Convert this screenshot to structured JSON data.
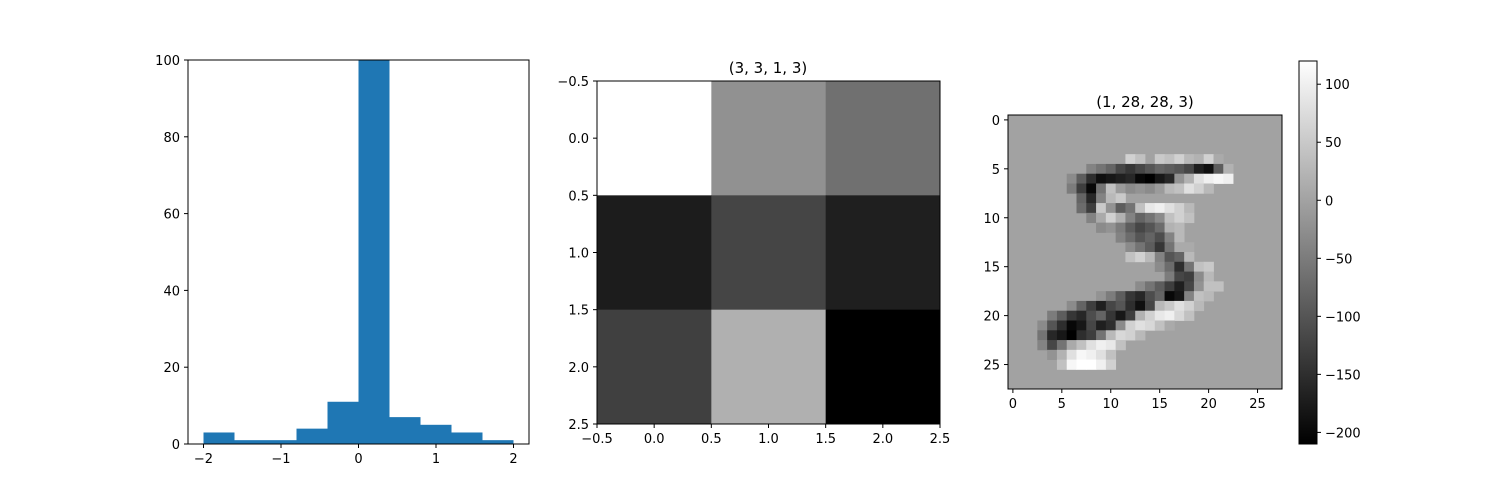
{
  "chart_data": [
    {
      "type": "bar",
      "subtype": "histogram",
      "title": "",
      "xlabel": "",
      "ylabel": "",
      "xlim": [
        -2.2,
        2.2
      ],
      "ylim": [
        0,
        100
      ],
      "bin_edges": [
        -2.0,
        -1.6,
        -1.2,
        -0.8,
        -0.4,
        0.0,
        0.4,
        0.8,
        1.2,
        1.6,
        2.0
      ],
      "values": [
        3,
        1,
        1,
        4,
        11,
        100,
        7,
        5,
        3,
        1
      ],
      "xticks": [
        -2,
        -1,
        0,
        1,
        2
      ],
      "xtick_labels": [
        "−2",
        "−1",
        "0",
        "1",
        "2"
      ],
      "yticks": [
        0,
        20,
        40,
        60,
        80,
        100
      ],
      "ytick_labels": [
        "0",
        "20",
        "40",
        "60",
        "80",
        "100"
      ],
      "bar_color": "#1f77b4",
      "grid": false
    },
    {
      "type": "heatmap",
      "title": "(3, 3, 1, 3)",
      "xlim": [
        -0.5,
        2.5
      ],
      "ylim": [
        2.5,
        -0.5
      ],
      "colormap": "gray",
      "values": [
        [
          1.0,
          0.57,
          0.44
        ],
        [
          0.11,
          0.27,
          0.12
        ],
        [
          0.25,
          0.69,
          0.0
        ]
      ],
      "xticks": [
        -0.5,
        0.0,
        0.5,
        1.0,
        1.5,
        2.0,
        2.5
      ],
      "xtick_labels": [
        "−0.5",
        "0.0",
        "0.5",
        "1.0",
        "1.5",
        "2.0",
        "2.5"
      ],
      "yticks": [
        -0.5,
        0.0,
        0.5,
        1.0,
        1.5,
        2.0,
        2.5
      ],
      "ytick_labels": [
        "−0.5",
        "0.0",
        "0.5",
        "1.0",
        "1.5",
        "2.0",
        "2.5"
      ],
      "grid": false
    },
    {
      "type": "heatmap",
      "title": "(1, 28, 28, 3)",
      "colormap": "gray",
      "vmin": -210,
      "vmax": 120,
      "background_value": 0,
      "rows": 28,
      "cols": 28,
      "cells": [
        [
          4,
          12,
          60
        ],
        [
          4,
          13,
          40
        ],
        [
          4,
          15,
          50
        ],
        [
          4,
          16,
          40
        ],
        [
          4,
          17,
          60
        ],
        [
          4,
          18,
          30
        ],
        [
          4,
          19,
          20
        ],
        [
          4,
          20,
          60
        ],
        [
          4,
          21,
          10
        ],
        [
          5,
          8,
          -40
        ],
        [
          5,
          9,
          -60
        ],
        [
          5,
          10,
          -80
        ],
        [
          5,
          11,
          -120
        ],
        [
          5,
          12,
          -140
        ],
        [
          5,
          13,
          -120
        ],
        [
          5,
          14,
          -100
        ],
        [
          5,
          15,
          -80
        ],
        [
          5,
          16,
          -90
        ],
        [
          5,
          17,
          -100
        ],
        [
          5,
          18,
          -120
        ],
        [
          5,
          19,
          -170
        ],
        [
          5,
          20,
          -190
        ],
        [
          5,
          21,
          -90
        ],
        [
          5,
          22,
          20
        ],
        [
          6,
          6,
          -30
        ],
        [
          6,
          7,
          -90
        ],
        [
          6,
          8,
          -150
        ],
        [
          6,
          9,
          -190
        ],
        [
          6,
          10,
          -180
        ],
        [
          6,
          11,
          -170
        ],
        [
          6,
          12,
          -160
        ],
        [
          6,
          13,
          -200
        ],
        [
          6,
          14,
          -210
        ],
        [
          6,
          15,
          -180
        ],
        [
          6,
          16,
          -160
        ],
        [
          6,
          17,
          -20
        ],
        [
          6,
          18,
          20
        ],
        [
          6,
          19,
          80
        ],
        [
          6,
          20,
          100
        ],
        [
          6,
          21,
          110
        ],
        [
          6,
          22,
          100
        ],
        [
          7,
          6,
          -50
        ],
        [
          7,
          7,
          -130
        ],
        [
          7,
          8,
          -200
        ],
        [
          7,
          9,
          -60
        ],
        [
          7,
          10,
          40
        ],
        [
          7,
          11,
          -10
        ],
        [
          7,
          12,
          -30
        ],
        [
          7,
          13,
          -20
        ],
        [
          7,
          14,
          -30
        ],
        [
          7,
          15,
          -10
        ],
        [
          7,
          16,
          30
        ],
        [
          7,
          17,
          40
        ],
        [
          7,
          18,
          80
        ],
        [
          7,
          19,
          60
        ],
        [
          7,
          20,
          30
        ],
        [
          8,
          7,
          -80
        ],
        [
          8,
          8,
          -160
        ],
        [
          8,
          9,
          -40
        ],
        [
          8,
          10,
          30
        ],
        [
          8,
          11,
          50
        ],
        [
          9,
          7,
          -70
        ],
        [
          9,
          8,
          -130
        ],
        [
          9,
          9,
          50
        ],
        [
          9,
          10,
          -20
        ],
        [
          9,
          11,
          -90
        ],
        [
          9,
          12,
          -60
        ],
        [
          9,
          13,
          40
        ],
        [
          9,
          14,
          90
        ],
        [
          9,
          15,
          100
        ],
        [
          9,
          16,
          80
        ],
        [
          9,
          17,
          60
        ],
        [
          9,
          18,
          30
        ],
        [
          10,
          8,
          -40
        ],
        [
          10,
          9,
          10
        ],
        [
          10,
          10,
          60
        ],
        [
          10,
          11,
          20
        ],
        [
          10,
          12,
          -40
        ],
        [
          10,
          13,
          -80
        ],
        [
          10,
          14,
          -60
        ],
        [
          10,
          15,
          -30
        ],
        [
          10,
          16,
          40
        ],
        [
          10,
          17,
          60
        ],
        [
          10,
          18,
          40
        ],
        [
          11,
          9,
          -30
        ],
        [
          11,
          10,
          -20
        ],
        [
          11,
          11,
          -50
        ],
        [
          11,
          12,
          -90
        ],
        [
          11,
          13,
          -120
        ],
        [
          11,
          14,
          -100
        ],
        [
          11,
          15,
          -70
        ],
        [
          11,
          16,
          20
        ],
        [
          11,
          17,
          30
        ],
        [
          12,
          11,
          -40
        ],
        [
          12,
          12,
          -70
        ],
        [
          12,
          13,
          -100
        ],
        [
          12,
          14,
          -80
        ],
        [
          12,
          15,
          -110
        ],
        [
          12,
          16,
          -40
        ],
        [
          12,
          17,
          30
        ],
        [
          13,
          12,
          -30
        ],
        [
          13,
          13,
          -60
        ],
        [
          13,
          14,
          -90
        ],
        [
          13,
          15,
          -140
        ],
        [
          13,
          16,
          -60
        ],
        [
          13,
          17,
          10
        ],
        [
          13,
          18,
          10
        ],
        [
          14,
          12,
          40
        ],
        [
          14,
          13,
          60
        ],
        [
          14,
          14,
          30
        ],
        [
          14,
          15,
          -40
        ],
        [
          14,
          16,
          -100
        ],
        [
          14,
          17,
          -80
        ],
        [
          14,
          18,
          30
        ],
        [
          15,
          15,
          -30
        ],
        [
          15,
          16,
          -70
        ],
        [
          15,
          17,
          -150
        ],
        [
          15,
          18,
          -60
        ],
        [
          15,
          19,
          40
        ],
        [
          15,
          20,
          50
        ],
        [
          16,
          16,
          -50
        ],
        [
          16,
          17,
          -120
        ],
        [
          16,
          18,
          -130
        ],
        [
          16,
          19,
          -30
        ],
        [
          16,
          20,
          30
        ],
        [
          17,
          13,
          -30
        ],
        [
          17,
          14,
          -60
        ],
        [
          17,
          15,
          -90
        ],
        [
          17,
          16,
          -130
        ],
        [
          17,
          17,
          -170
        ],
        [
          17,
          18,
          -120
        ],
        [
          17,
          19,
          -20
        ],
        [
          17,
          20,
          40
        ],
        [
          17,
          21,
          40
        ],
        [
          18,
          9,
          -20
        ],
        [
          18,
          10,
          -50
        ],
        [
          18,
          11,
          -90
        ],
        [
          18,
          12,
          -140
        ],
        [
          18,
          13,
          -160
        ],
        [
          18,
          14,
          -110
        ],
        [
          18,
          15,
          -80
        ],
        [
          18,
          16,
          -200
        ],
        [
          18,
          17,
          -180
        ],
        [
          18,
          18,
          -40
        ],
        [
          18,
          19,
          40
        ],
        [
          18,
          20,
          30
        ],
        [
          19,
          6,
          -30
        ],
        [
          19,
          7,
          -80
        ],
        [
          19,
          8,
          -130
        ],
        [
          19,
          9,
          -170
        ],
        [
          19,
          10,
          -120
        ],
        [
          19,
          11,
          -100
        ],
        [
          19,
          12,
          -150
        ],
        [
          19,
          13,
          -190
        ],
        [
          19,
          14,
          -120
        ],
        [
          19,
          15,
          30
        ],
        [
          19,
          16,
          50
        ],
        [
          19,
          17,
          80
        ],
        [
          19,
          18,
          60
        ],
        [
          19,
          19,
          30
        ],
        [
          20,
          4,
          -50
        ],
        [
          20,
          5,
          -90
        ],
        [
          20,
          6,
          -140
        ],
        [
          20,
          7,
          -160
        ],
        [
          20,
          8,
          -110
        ],
        [
          20,
          9,
          -80
        ],
        [
          20,
          10,
          -140
        ],
        [
          20,
          11,
          -180
        ],
        [
          20,
          12,
          -130
        ],
        [
          20,
          13,
          20
        ],
        [
          20,
          14,
          60
        ],
        [
          20,
          15,
          90
        ],
        [
          20,
          16,
          100
        ],
        [
          20,
          17,
          70
        ],
        [
          20,
          18,
          40
        ],
        [
          21,
          3,
          -30
        ],
        [
          21,
          4,
          -100
        ],
        [
          21,
          5,
          -150
        ],
        [
          21,
          6,
          -200
        ],
        [
          21,
          7,
          -180
        ],
        [
          21,
          8,
          -120
        ],
        [
          21,
          9,
          -170
        ],
        [
          21,
          10,
          -150
        ],
        [
          21,
          11,
          -30
        ],
        [
          21,
          12,
          60
        ],
        [
          21,
          13,
          80
        ],
        [
          21,
          14,
          70
        ],
        [
          21,
          15,
          40
        ],
        [
          21,
          16,
          10
        ],
        [
          22,
          3,
          -60
        ],
        [
          22,
          4,
          -160
        ],
        [
          22,
          5,
          -180
        ],
        [
          22,
          6,
          -210
        ],
        [
          22,
          7,
          -150
        ],
        [
          22,
          8,
          -130
        ],
        [
          22,
          9,
          -60
        ],
        [
          22,
          10,
          30
        ],
        [
          22,
          11,
          70
        ],
        [
          22,
          12,
          60
        ],
        [
          22,
          13,
          30
        ],
        [
          23,
          3,
          -40
        ],
        [
          23,
          4,
          -120
        ],
        [
          23,
          5,
          -60
        ],
        [
          23,
          6,
          10
        ],
        [
          23,
          7,
          40
        ],
        [
          23,
          8,
          80
        ],
        [
          23,
          9,
          100
        ],
        [
          23,
          10,
          90
        ],
        [
          23,
          11,
          40
        ],
        [
          24,
          4,
          -20
        ],
        [
          24,
          5,
          20
        ],
        [
          24,
          6,
          80
        ],
        [
          24,
          7,
          110
        ],
        [
          24,
          8,
          100
        ],
        [
          24,
          9,
          80
        ],
        [
          24,
          10,
          40
        ],
        [
          25,
          5,
          40
        ],
        [
          25,
          6,
          110
        ],
        [
          25,
          7,
          120
        ],
        [
          25,
          8,
          120
        ],
        [
          25,
          9,
          100
        ],
        [
          25,
          10,
          60
        ]
      ],
      "xticks": [
        0,
        5,
        10,
        15,
        20,
        25
      ],
      "xtick_labels": [
        "0",
        "5",
        "10",
        "15",
        "20",
        "25"
      ],
      "yticks": [
        0,
        5,
        10,
        15,
        20,
        25
      ],
      "ytick_labels": [
        "0",
        "5",
        "10",
        "15",
        "20",
        "25"
      ],
      "colorbar": {
        "vmin": -210,
        "vmax": 120,
        "ticks": [
          100,
          50,
          0,
          -50,
          -100,
          -150,
          -200
        ],
        "tick_labels": [
          "100",
          "50",
          "0",
          "−50",
          "−100",
          "−150",
          "−200"
        ]
      },
      "grid": false
    }
  ]
}
